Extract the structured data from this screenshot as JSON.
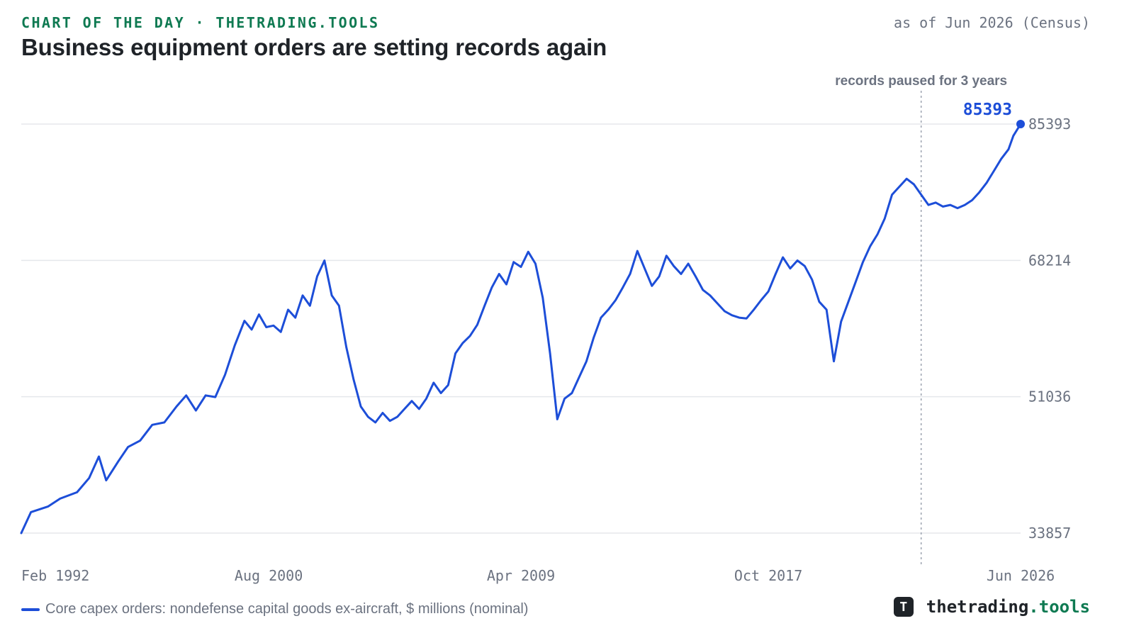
{
  "header": {
    "kicker": "CHART OF THE DAY · THETRADING.TOOLS",
    "as_of": "as of Jun 2026 (Census)",
    "title": "Business equipment orders are setting records again"
  },
  "legend": {
    "label": "Core capex orders: nondefense capital goods ex-aircraft, $ millions (nominal)"
  },
  "brand": {
    "name": "thetrading",
    "suffix": ".tools",
    "logo_letter": "T"
  },
  "colors": {
    "line": "#1d4ed8",
    "grid": "#e5e7eb",
    "kicker": "#0f7a52",
    "axis_text": "#6b7280"
  },
  "chart_data": {
    "type": "line",
    "x_ticks": [
      "Feb 1992",
      "Aug 2000",
      "Apr 2009",
      "Oct 2017",
      "Jun 2026"
    ],
    "y_ticks": [
      33857,
      51036,
      68214,
      85393
    ],
    "ylim": [
      33857,
      85393
    ],
    "xlim": [
      "1992-02",
      "2026-06"
    ],
    "last_value": "85393",
    "annotation": {
      "text": "records paused for 3 years",
      "date": "2023-01"
    },
    "series": [
      {
        "name": "Core capex orders: nondefense capital goods ex-aircraft, $ millions (nominal)",
        "points": [
          [
            "1992-02",
            33857
          ],
          [
            "1992-06",
            36500
          ],
          [
            "1993-01",
            37200
          ],
          [
            "1993-06",
            38200
          ],
          [
            "1994-01",
            39000
          ],
          [
            "1994-06",
            40800
          ],
          [
            "1994-10",
            43500
          ],
          [
            "1995-01",
            40500
          ],
          [
            "1995-06",
            42900
          ],
          [
            "1995-10",
            44700
          ],
          [
            "1996-03",
            45500
          ],
          [
            "1996-08",
            47500
          ],
          [
            "1997-01",
            47800
          ],
          [
            "1997-06",
            49800
          ],
          [
            "1997-10",
            51200
          ],
          [
            "1998-02",
            49300
          ],
          [
            "1998-06",
            51200
          ],
          [
            "1998-10",
            51000
          ],
          [
            "1999-02",
            53800
          ],
          [
            "1999-06",
            57500
          ],
          [
            "1999-10",
            60600
          ],
          [
            "2000-01",
            59500
          ],
          [
            "2000-04",
            61400
          ],
          [
            "2000-07",
            59800
          ],
          [
            "2000-10",
            60000
          ],
          [
            "2001-01",
            59200
          ],
          [
            "2001-04",
            62000
          ],
          [
            "2001-07",
            61000
          ],
          [
            "2001-10",
            63800
          ],
          [
            "2002-01",
            62500
          ],
          [
            "2002-04",
            66200
          ],
          [
            "2002-07",
            68200
          ],
          [
            "2002-10",
            63800
          ],
          [
            "2003-01",
            62500
          ],
          [
            "2003-04",
            57300
          ],
          [
            "2003-07",
            53200
          ],
          [
            "2003-10",
            49800
          ],
          [
            "2004-01",
            48500
          ],
          [
            "2004-04",
            47800
          ],
          [
            "2004-07",
            49000
          ],
          [
            "2004-10",
            48000
          ],
          [
            "2005-01",
            48500
          ],
          [
            "2005-04",
            49500
          ],
          [
            "2005-07",
            50500
          ],
          [
            "2005-10",
            49500
          ],
          [
            "2006-01",
            50800
          ],
          [
            "2006-04",
            52800
          ],
          [
            "2006-07",
            51500
          ],
          [
            "2006-10",
            52500
          ],
          [
            "2007-01",
            56500
          ],
          [
            "2007-04",
            57800
          ],
          [
            "2007-07",
            58700
          ],
          [
            "2007-10",
            60100
          ],
          [
            "2008-01",
            62500
          ],
          [
            "2008-04",
            64800
          ],
          [
            "2008-07",
            66500
          ],
          [
            "2008-10",
            65200
          ],
          [
            "2009-01",
            68000
          ],
          [
            "2009-04",
            67400
          ],
          [
            "2009-07",
            69300
          ],
          [
            "2009-10",
            67800
          ],
          [
            "2010-01",
            63500
          ],
          [
            "2010-04",
            56500
          ],
          [
            "2010-07",
            48200
          ],
          [
            "2010-10",
            50800
          ],
          [
            "2011-01",
            51500
          ],
          [
            "2011-04",
            53500
          ],
          [
            "2011-07",
            55500
          ],
          [
            "2011-10",
            58500
          ],
          [
            "2012-01",
            61000
          ],
          [
            "2012-04",
            62000
          ],
          [
            "2012-07",
            63200
          ],
          [
            "2012-10",
            64800
          ],
          [
            "2013-01",
            66500
          ],
          [
            "2013-04",
            69400
          ],
          [
            "2013-07",
            67200
          ],
          [
            "2013-10",
            65000
          ],
          [
            "2014-01",
            66200
          ],
          [
            "2014-04",
            68800
          ],
          [
            "2014-07",
            67500
          ],
          [
            "2014-10",
            66500
          ],
          [
            "2015-01",
            67800
          ],
          [
            "2015-04",
            66200
          ],
          [
            "2015-07",
            64500
          ],
          [
            "2015-10",
            63800
          ],
          [
            "2016-01",
            62800
          ],
          [
            "2016-04",
            61800
          ],
          [
            "2016-07",
            61300
          ],
          [
            "2016-10",
            61000
          ],
          [
            "2017-01",
            60900
          ],
          [
            "2017-04",
            62000
          ],
          [
            "2017-07",
            63200
          ],
          [
            "2017-10",
            64300
          ],
          [
            "2018-01",
            66500
          ],
          [
            "2018-04",
            68600
          ],
          [
            "2018-07",
            67200
          ],
          [
            "2018-10",
            68200
          ],
          [
            "2019-01",
            67500
          ],
          [
            "2019-04",
            65800
          ],
          [
            "2019-07",
            63000
          ],
          [
            "2019-10",
            62000
          ],
          [
            "2020-01",
            55500
          ],
          [
            "2020-04",
            60500
          ],
          [
            "2020-07",
            63000
          ],
          [
            "2020-10",
            65500
          ],
          [
            "2021-01",
            68000
          ],
          [
            "2021-04",
            70000
          ],
          [
            "2021-07",
            71500
          ],
          [
            "2021-10",
            73500
          ],
          [
            "2022-01",
            76500
          ],
          [
            "2022-04",
            77500
          ],
          [
            "2022-07",
            78500
          ],
          [
            "2022-10",
            77800
          ],
          [
            "2023-01",
            76500
          ],
          [
            "2023-04",
            75200
          ],
          [
            "2023-07",
            75500
          ],
          [
            "2023-10",
            75000
          ],
          [
            "2024-01",
            75200
          ],
          [
            "2024-04",
            74800
          ],
          [
            "2024-07",
            75200
          ],
          [
            "2024-10",
            75800
          ],
          [
            "2025-01",
            76800
          ],
          [
            "2025-04",
            78000
          ],
          [
            "2025-07",
            79500
          ],
          [
            "2025-10",
            81000
          ],
          [
            "2026-01",
            82200
          ],
          [
            "2026-03",
            83900
          ],
          [
            "2026-06",
            85393
          ]
        ]
      }
    ]
  }
}
